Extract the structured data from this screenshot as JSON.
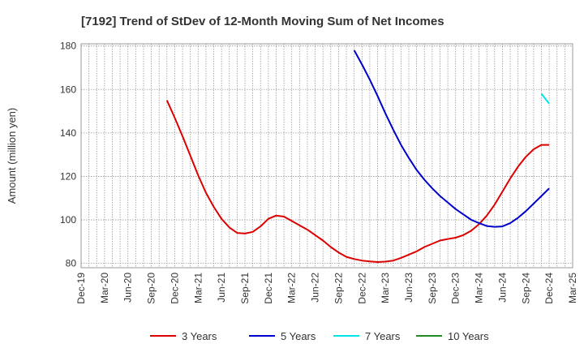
{
  "chart_data": {
    "type": "line",
    "title": "[7192]  Trend of StDev of 12-Month Moving Sum of Net Incomes",
    "xlabel": "",
    "ylabel": "Amount (million yen)",
    "ylim": [
      78,
      181
    ],
    "yticks": [
      80,
      100,
      120,
      140,
      160,
      180
    ],
    "x_range": [
      "2019-12",
      "2025-03"
    ],
    "x_ticks": [
      "Dec-19",
      "Mar-20",
      "Jun-20",
      "Sep-20",
      "Dec-20",
      "Mar-21",
      "Jun-21",
      "Sep-21",
      "Dec-21",
      "Mar-22",
      "Jun-22",
      "Sep-22",
      "Dec-22",
      "Mar-23",
      "Jun-23",
      "Sep-23",
      "Dec-23",
      "Mar-24",
      "Jun-24",
      "Sep-24",
      "Dec-24",
      "Mar-25"
    ],
    "grid": true,
    "legend_position": "bottom",
    "series": [
      {
        "name": "3 Years",
        "color": "#dd0000",
        "points": [
          [
            "2020-11",
            155.0
          ],
          [
            "2020-12",
            147.0
          ],
          [
            "2021-01",
            138.5
          ],
          [
            "2021-02",
            129.5
          ],
          [
            "2021-03",
            120.5
          ],
          [
            "2021-04",
            112.5
          ],
          [
            "2021-05",
            106.0
          ],
          [
            "2021-06",
            100.5
          ],
          [
            "2021-07",
            96.5
          ],
          [
            "2021-08",
            94.0
          ],
          [
            "2021-09",
            93.7
          ],
          [
            "2021-10",
            94.5
          ],
          [
            "2021-11",
            97.0
          ],
          [
            "2021-12",
            100.5
          ],
          [
            "2022-01",
            102.0
          ],
          [
            "2022-02",
            101.5
          ],
          [
            "2022-03",
            99.5
          ],
          [
            "2022-04",
            97.5
          ],
          [
            "2022-05",
            95.5
          ],
          [
            "2022-06",
            93.0
          ],
          [
            "2022-07",
            90.5
          ],
          [
            "2022-08",
            87.5
          ],
          [
            "2022-09",
            85.0
          ],
          [
            "2022-10",
            83.0
          ],
          [
            "2022-11",
            82.0
          ],
          [
            "2022-12",
            81.3
          ],
          [
            "2023-01",
            80.9
          ],
          [
            "2023-02",
            80.6
          ],
          [
            "2023-03",
            80.8
          ],
          [
            "2023-04",
            81.3
          ],
          [
            "2023-05",
            82.5
          ],
          [
            "2023-06",
            84.0
          ],
          [
            "2023-07",
            85.5
          ],
          [
            "2023-08",
            87.5
          ],
          [
            "2023-09",
            89.0
          ],
          [
            "2023-10",
            90.5
          ],
          [
            "2023-11",
            91.2
          ],
          [
            "2023-12",
            91.8
          ],
          [
            "2024-01",
            93.0
          ],
          [
            "2024-02",
            95.0
          ],
          [
            "2024-03",
            98.0
          ],
          [
            "2024-04",
            102.0
          ],
          [
            "2024-05",
            107.0
          ],
          [
            "2024-06",
            113.0
          ],
          [
            "2024-07",
            119.0
          ],
          [
            "2024-08",
            124.5
          ],
          [
            "2024-09",
            129.0
          ],
          [
            "2024-10",
            132.5
          ],
          [
            "2024-11",
            134.5
          ],
          [
            "2024-12",
            134.5
          ]
        ]
      },
      {
        "name": "5 Years",
        "color": "#0000cc",
        "points": [
          [
            "2022-11",
            178.0
          ],
          [
            "2022-12",
            171.5
          ],
          [
            "2023-01",
            164.5
          ],
          [
            "2023-02",
            157.0
          ],
          [
            "2023-03",
            149.0
          ],
          [
            "2023-04",
            141.5
          ],
          [
            "2023-05",
            134.5
          ],
          [
            "2023-06",
            128.5
          ],
          [
            "2023-07",
            123.0
          ],
          [
            "2023-08",
            118.5
          ],
          [
            "2023-09",
            114.5
          ],
          [
            "2023-10",
            111.0
          ],
          [
            "2023-11",
            108.0
          ],
          [
            "2023-12",
            105.0
          ],
          [
            "2024-01",
            102.5
          ],
          [
            "2024-02",
            100.0
          ],
          [
            "2024-03",
            98.5
          ],
          [
            "2024-04",
            97.2
          ],
          [
            "2024-05",
            96.8
          ],
          [
            "2024-06",
            97.0
          ],
          [
            "2024-07",
            98.5
          ],
          [
            "2024-08",
            101.0
          ],
          [
            "2024-09",
            104.0
          ],
          [
            "2024-10",
            107.5
          ],
          [
            "2024-11",
            111.0
          ],
          [
            "2024-12",
            114.5
          ]
        ]
      },
      {
        "name": "7 Years",
        "color": "#00e5e5",
        "points": [
          [
            "2024-11",
            158.0
          ],
          [
            "2024-12",
            153.5
          ]
        ]
      },
      {
        "name": "10 Years",
        "color": "#228b22",
        "points": []
      }
    ]
  }
}
